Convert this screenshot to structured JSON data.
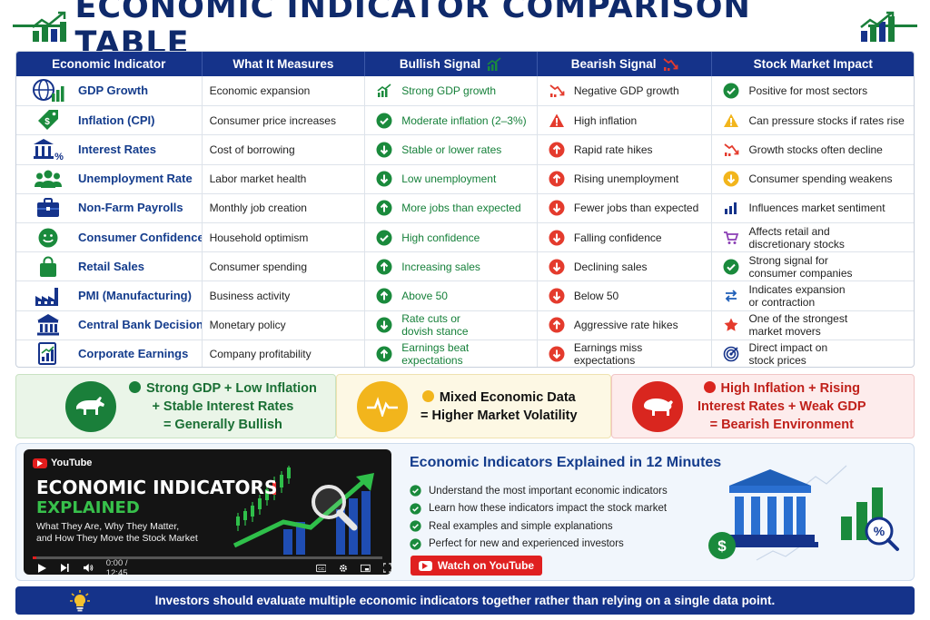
{
  "title": "ECONOMIC INDICATOR COMPARISON TABLE",
  "table": {
    "headers": [
      "Economic Indicator",
      "What It Measures",
      "Bullish Signal",
      "Bearish Signal",
      "Stock Market Impact"
    ],
    "rows": [
      {
        "icon": "globe-bar-chart-icon",
        "indicator": "GDP Growth",
        "measures": "Economic expansion",
        "bull_icon": "trend-up-icon",
        "bullish": "Strong GDP growth",
        "bear_icon": "trend-down-icon",
        "bearish": "Negative GDP growth",
        "impact_icon": "check-circle-icon",
        "impact": "Positive for most sectors"
      },
      {
        "icon": "price-tag-dollar-icon",
        "indicator": "Inflation (CPI)",
        "measures": "Consumer price increases",
        "bull_icon": "check-circle-icon",
        "bullish": "Moderate inflation (2–3%)",
        "bear_icon": "warning-triangle-icon",
        "bearish": "High inflation",
        "impact_icon": "warning-triangle-icon",
        "impact": "Can pressure stocks if rates rise"
      },
      {
        "icon": "bank-percent-icon",
        "indicator": "Interest Rates",
        "measures": "Cost of borrowing",
        "bull_icon": "arrow-down-circle-icon",
        "bullish": "Stable or lower rates",
        "bear_icon": "arrow-up-circle-icon",
        "bearish": "Rapid rate hikes",
        "impact_icon": "trend-down-icon",
        "impact": "Growth stocks often decline"
      },
      {
        "icon": "people-group-icon",
        "indicator": "Unemployment Rate",
        "measures": "Labor market health",
        "bull_icon": "arrow-down-circle-icon",
        "bullish": "Low unemployment",
        "bear_icon": "arrow-up-circle-icon",
        "bearish": "Rising unemployment",
        "impact_icon": "arrow-down-circle-icon",
        "impact": "Consumer spending weakens"
      },
      {
        "icon": "briefcase-icon",
        "indicator": "Non-Farm Payrolls",
        "measures": "Monthly job creation",
        "bull_icon": "arrow-up-circle-icon",
        "bullish": "More jobs than expected",
        "bear_icon": "arrow-down-circle-icon",
        "bearish": "Fewer jobs than expected",
        "impact_icon": "bar-chart-icon",
        "impact": "Influences market sentiment"
      },
      {
        "icon": "smiley-face-icon",
        "indicator": "Consumer Confidence",
        "measures": "Household optimism",
        "bull_icon": "check-circle-icon",
        "bullish": "High confidence",
        "bear_icon": "arrow-down-circle-icon",
        "bearish": "Falling confidence",
        "impact_icon": "shopping-cart-icon",
        "impact": "Affects retail and\ndiscretionary stocks"
      },
      {
        "icon": "shopping-bag-icon",
        "indicator": "Retail Sales",
        "measures": "Consumer spending",
        "bull_icon": "arrow-up-circle-icon",
        "bullish": "Increasing sales",
        "bear_icon": "arrow-down-circle-icon",
        "bearish": "Declining sales",
        "impact_icon": "check-circle-icon",
        "impact": "Strong signal for\nconsumer companies"
      },
      {
        "icon": "factory-icon",
        "indicator": "PMI (Manufacturing)",
        "measures": "Business activity",
        "bull_icon": "arrow-up-circle-icon",
        "bullish": "Above 50",
        "bear_icon": "arrow-down-circle-icon",
        "bearish": "Below 50",
        "impact_icon": "swap-arrows-icon",
        "impact": "Indicates expansion\nor contraction"
      },
      {
        "icon": "bank-building-icon",
        "indicator": "Central Bank Decision",
        "measures": "Monetary policy",
        "bull_icon": "arrow-down-circle-icon",
        "bullish": "Rate cuts or\ndovish stance",
        "bear_icon": "arrow-up-circle-icon",
        "bearish": "Aggressive rate hikes",
        "impact_icon": "star-icon",
        "impact": "One of the strongest\nmarket movers"
      },
      {
        "icon": "report-chart-icon",
        "indicator": "Corporate Earnings",
        "measures": "Company profitability",
        "bull_icon": "arrow-up-circle-icon",
        "bullish": "Earnings beat\nexpectations",
        "bear_icon": "arrow-down-circle-icon",
        "bearish": "Earnings miss\nexpectations",
        "impact_icon": "target-icon",
        "impact": "Direct impact on\nstock prices"
      }
    ]
  },
  "scenarios": {
    "bullish": {
      "text": "Strong GDP + Low Inflation\n+ Stable Interest Rates\n= Generally Bullish",
      "icon": "bull-icon"
    },
    "mixed": {
      "text": "Mixed Economic Data\n= Higher Market Volatility",
      "icon": "pulse-line-icon"
    },
    "bearish": {
      "text": "High Inflation + Rising\nInterest Rates + Weak GDP\n= Bearish Environment",
      "icon": "bear-icon"
    }
  },
  "video": {
    "platform": "YouTube",
    "title_line1": "ECONOMIC INDICATORS",
    "title_line2": "EXPLAINED",
    "subtitle": "What They Are, Why They Matter,\nand How They Move the Stock Market",
    "time": "0:00 / 12:45",
    "progress_fraction": 0.01,
    "heading": "Economic Indicators Explained in 12 Minutes",
    "bullets": [
      "Understand the most important economic indicators",
      "Learn how these indicators impact the stock market",
      "Real examples and simple explanations",
      "Perfect for new and experienced investors"
    ],
    "button_label": "Watch on YouTube"
  },
  "footer": "Investors should evaluate multiple economic indicators together rather than relying on a single data point.",
  "colors": {
    "navy": "#15338a",
    "green": "#1a7f3a",
    "red": "#e02020",
    "amber": "#f2b51c"
  }
}
